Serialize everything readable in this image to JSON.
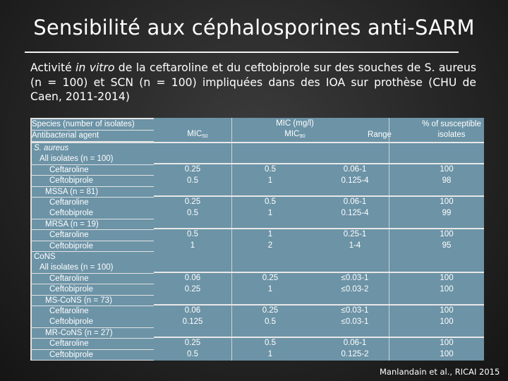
{
  "title": "Sensibilité aux céphalosporines anti-SARM",
  "subtitle": {
    "before": "Activité ",
    "italic": "in vitro",
    "after": " de la ceftaroline et du ceftobiprole sur des souches de S. aureus (n = 100) et SCN  (n = 100) impliquées dans des IOA sur prothèse (CHU de Caen, 2011-2014)"
  },
  "table": {
    "left_header": [
      "Species (number of isolates)",
      "Antibacterial agent"
    ],
    "mic_header": "MIC (mg/l)",
    "mic50": "MIC",
    "mic50_sub": "50",
    "mic90": "MIC",
    "mic90_sub": "90",
    "range": "Range",
    "susceptible": [
      "% of susceptible",
      "isolates"
    ],
    "left_rows": [
      "S. aureus",
      "All isolates (n = 100)",
      "Ceftaroline",
      "Ceftobiprole",
      "MSSA (n = 81)",
      "Ceftaroline",
      "Ceftobiprole",
      "MRSA (n = 19)",
      "Ceftaroline",
      "Ceftobiprole",
      "CoNS",
      "All isolates (n = 100)",
      "Ceftaroline",
      "Ceftobiprole",
      "MS-CoNS (n = 73)",
      "Ceftaroline",
      "Ceftobiprole",
      "MR-CoNS (n = 27)",
      "Ceftaroline",
      "Ceftobiprole"
    ],
    "groups": [
      {
        "mic50": [
          "0.25",
          "0.5"
        ],
        "mic90": [
          "0.5",
          "1"
        ],
        "range": [
          "0.06-1",
          "0.125-4"
        ],
        "pct": [
          "100",
          "98"
        ]
      },
      {
        "mic50": [
          "0.25",
          "0.5"
        ],
        "mic90": [
          "0.5",
          "1"
        ],
        "range": [
          "0.06-1",
          "0.125-4"
        ],
        "pct": [
          "100",
          "99"
        ]
      },
      {
        "mic50": [
          "0.5",
          "1"
        ],
        "mic90": [
          "1",
          "2"
        ],
        "range": [
          "0.25-1",
          "1-4"
        ],
        "pct": [
          "100",
          "95"
        ]
      },
      {
        "mic50": [
          "0.06",
          "0.25"
        ],
        "mic90": [
          "0.25",
          "1"
        ],
        "range": [
          "≤0.03-1",
          "≤0.03-2"
        ],
        "pct": [
          "100",
          "100"
        ]
      },
      {
        "mic50": [
          "0.06",
          "0.125"
        ],
        "mic90": [
          "0.25",
          "0.5"
        ],
        "range": [
          "≤0.03-1",
          "≤0.03-1"
        ],
        "pct": [
          "100",
          "100"
        ]
      },
      {
        "mic50": [
          "0.25",
          "0.5"
        ],
        "mic90": [
          "0.5",
          "1"
        ],
        "range": [
          "0.06-1",
          "0.125-2"
        ],
        "pct": [
          "100",
          "100"
        ]
      }
    ]
  },
  "footer": "Manlandain et al., RICAI 2015"
}
